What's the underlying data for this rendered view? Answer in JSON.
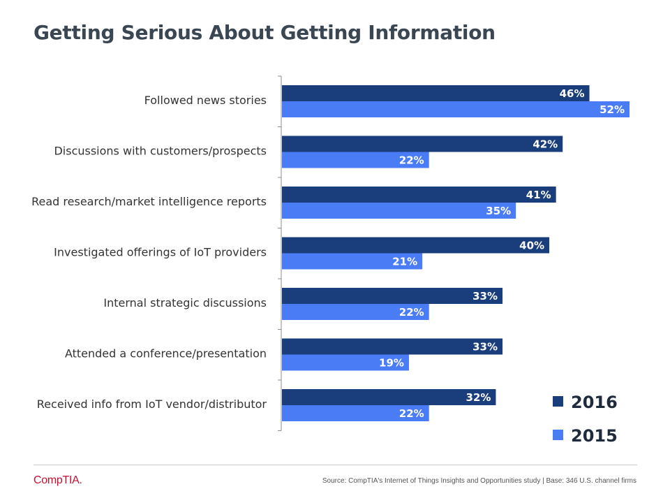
{
  "title": "Getting Serious About Getting Information",
  "chart_data": {
    "type": "bar",
    "orientation": "horizontal",
    "title": "Getting Serious About Getting Information",
    "categories": [
      "Followed news stories",
      "Discussions with customers/prospects",
      "Read research/market intelligence reports",
      "Investigated offerings of IoT providers",
      "Internal strategic discussions",
      "Attended a conference/presentation",
      "Received info from IoT vendor/distributor"
    ],
    "series": [
      {
        "name": "2016",
        "color": "#1a3e7c",
        "values": [
          46,
          42,
          41,
          40,
          33,
          33,
          32
        ],
        "labels": [
          "46%",
          "42%",
          "41%",
          "40%",
          "33%",
          "33%",
          "32%"
        ]
      },
      {
        "name": "2015",
        "color": "#4a7cf5",
        "values": [
          52,
          22,
          35,
          21,
          22,
          19,
          22
        ],
        "labels": [
          "52%",
          "22%",
          "35%",
          "21%",
          "22%",
          "19%",
          "22%"
        ]
      }
    ],
    "xlim": [
      0,
      52
    ],
    "xlabel": "",
    "ylabel": "",
    "grid": false,
    "legend": {
      "position": "bottom-right"
    }
  },
  "footer": {
    "logo": "CompTIA.",
    "source": "Source: CompTIA's Internet of Things Insights and Opportunities study | Base: 346 U.S. channel firms"
  }
}
